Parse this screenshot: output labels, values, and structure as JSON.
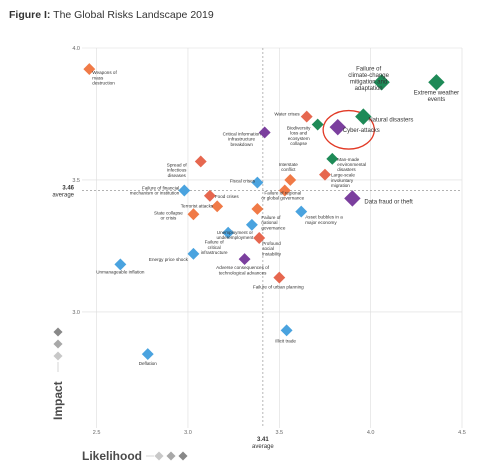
{
  "figure": {
    "label": "Figure I:",
    "title": "The Global Risks Landscape 2019"
  },
  "chart_data": {
    "type": "scatter",
    "xlabel": "Likelihood",
    "ylabel": "Impact",
    "xlim": [
      2.42,
      4.5
    ],
    "ylim": [
      2.56,
      4.0
    ],
    "xticks": [
      "2.5",
      "3.0",
      "3.5",
      "4.0",
      "4.5"
    ],
    "yticks": [
      "3.0",
      "3.5",
      "4.0"
    ],
    "average": {
      "x": 3.41,
      "y": 3.46,
      "x_label": "3.41",
      "y_label": "3.46",
      "word": "average"
    },
    "colors": {
      "economic": "#4aa3df",
      "environmental": "#1e8a57",
      "geopolitical": "#f07a47",
      "societal": "#e6674f",
      "technological": "#7b3f9e"
    },
    "highlight": {
      "x": 3.88,
      "y": 3.69,
      "rx_value": 0.14,
      "ry_value": 0.073,
      "color": "#e23a26"
    },
    "points": [
      {
        "label": "Weapons of mass destruction",
        "x": 2.46,
        "y": 3.92,
        "cat": "geopolitical",
        "size": "small"
      },
      {
        "label": "Failure of climate-change mitigation and adaptation",
        "x": 4.06,
        "y": 3.87,
        "cat": "environmental",
        "size": "big"
      },
      {
        "label": "Extreme weather events",
        "x": 4.36,
        "y": 3.87,
        "cat": "environmental",
        "size": "big"
      },
      {
        "label": "Water crises",
        "x": 3.65,
        "y": 3.74,
        "cat": "societal",
        "size": "small"
      },
      {
        "label": "Natural disasters",
        "x": 3.96,
        "y": 3.74,
        "cat": "environmental",
        "size": "big"
      },
      {
        "label": "Biodiversity loss and ecosystem collapse",
        "x": 3.71,
        "y": 3.71,
        "cat": "environmental",
        "size": "small"
      },
      {
        "label": "Cyber-attacks",
        "x": 3.82,
        "y": 3.7,
        "cat": "technological",
        "size": "big"
      },
      {
        "label": "Critical information infrastructure breakdown",
        "x": 3.42,
        "y": 3.68,
        "cat": "technological",
        "size": "small"
      },
      {
        "label": "Man-made environmental disasters",
        "x": 3.79,
        "y": 3.58,
        "cat": "environmental",
        "size": "small"
      },
      {
        "label": "Spread of infectious diseases",
        "x": 3.07,
        "y": 3.57,
        "cat": "societal",
        "size": "small"
      },
      {
        "label": "Large-scale involuntary migration",
        "x": 3.75,
        "y": 3.52,
        "cat": "societal",
        "size": "small"
      },
      {
        "label": "Interstate conflict",
        "x": 3.56,
        "y": 3.5,
        "cat": "geopolitical",
        "size": "small"
      },
      {
        "label": "Fiscal crises",
        "x": 3.38,
        "y": 3.49,
        "cat": "economic",
        "size": "small"
      },
      {
        "label": "Failure of financial mechanism or institution",
        "x": 2.98,
        "y": 3.46,
        "cat": "economic",
        "size": "small"
      },
      {
        "label": "Food crises",
        "x": 3.12,
        "y": 3.44,
        "cat": "societal",
        "size": "small"
      },
      {
        "label": "Failure of regional or global governance",
        "x": 3.53,
        "y": 3.46,
        "cat": "geopolitical",
        "size": "small"
      },
      {
        "label": "Data fraud or theft",
        "x": 3.9,
        "y": 3.43,
        "cat": "technological",
        "size": "big"
      },
      {
        "label": "Terrorist attacks",
        "x": 3.16,
        "y": 3.4,
        "cat": "geopolitical",
        "size": "small"
      },
      {
        "label": "Failure of national governance",
        "x": 3.38,
        "y": 3.39,
        "cat": "geopolitical",
        "size": "small"
      },
      {
        "label": "Asset bubbles in a major economy",
        "x": 3.62,
        "y": 3.38,
        "cat": "economic",
        "size": "small"
      },
      {
        "label": "State collapse or crisis",
        "x": 3.03,
        "y": 3.37,
        "cat": "geopolitical",
        "size": "small"
      },
      {
        "label": "Unemployment or underemployment",
        "x": 3.35,
        "y": 3.33,
        "cat": "economic",
        "size": "small"
      },
      {
        "label": "Failure of critical infrastructure",
        "x": 3.22,
        "y": 3.3,
        "cat": "economic",
        "size": "small"
      },
      {
        "label": "Profound social instability",
        "x": 3.39,
        "y": 3.28,
        "cat": "societal",
        "size": "small"
      },
      {
        "label": "Energy price shock",
        "x": 3.03,
        "y": 3.22,
        "cat": "economic",
        "size": "small"
      },
      {
        "label": "Adverse consequences of technological advances",
        "x": 3.31,
        "y": 3.2,
        "cat": "technological",
        "size": "small"
      },
      {
        "label": "Unmanageable inflation",
        "x": 2.63,
        "y": 3.18,
        "cat": "economic",
        "size": "small"
      },
      {
        "label": "Failure of urban planning",
        "x": 3.5,
        "y": 3.13,
        "cat": "societal",
        "size": "small"
      },
      {
        "label": "Illicit trade",
        "x": 3.54,
        "y": 2.93,
        "cat": "economic",
        "size": "small"
      },
      {
        "label": "Deflation",
        "x": 2.78,
        "y": 2.84,
        "cat": "economic",
        "size": "small"
      }
    ]
  }
}
